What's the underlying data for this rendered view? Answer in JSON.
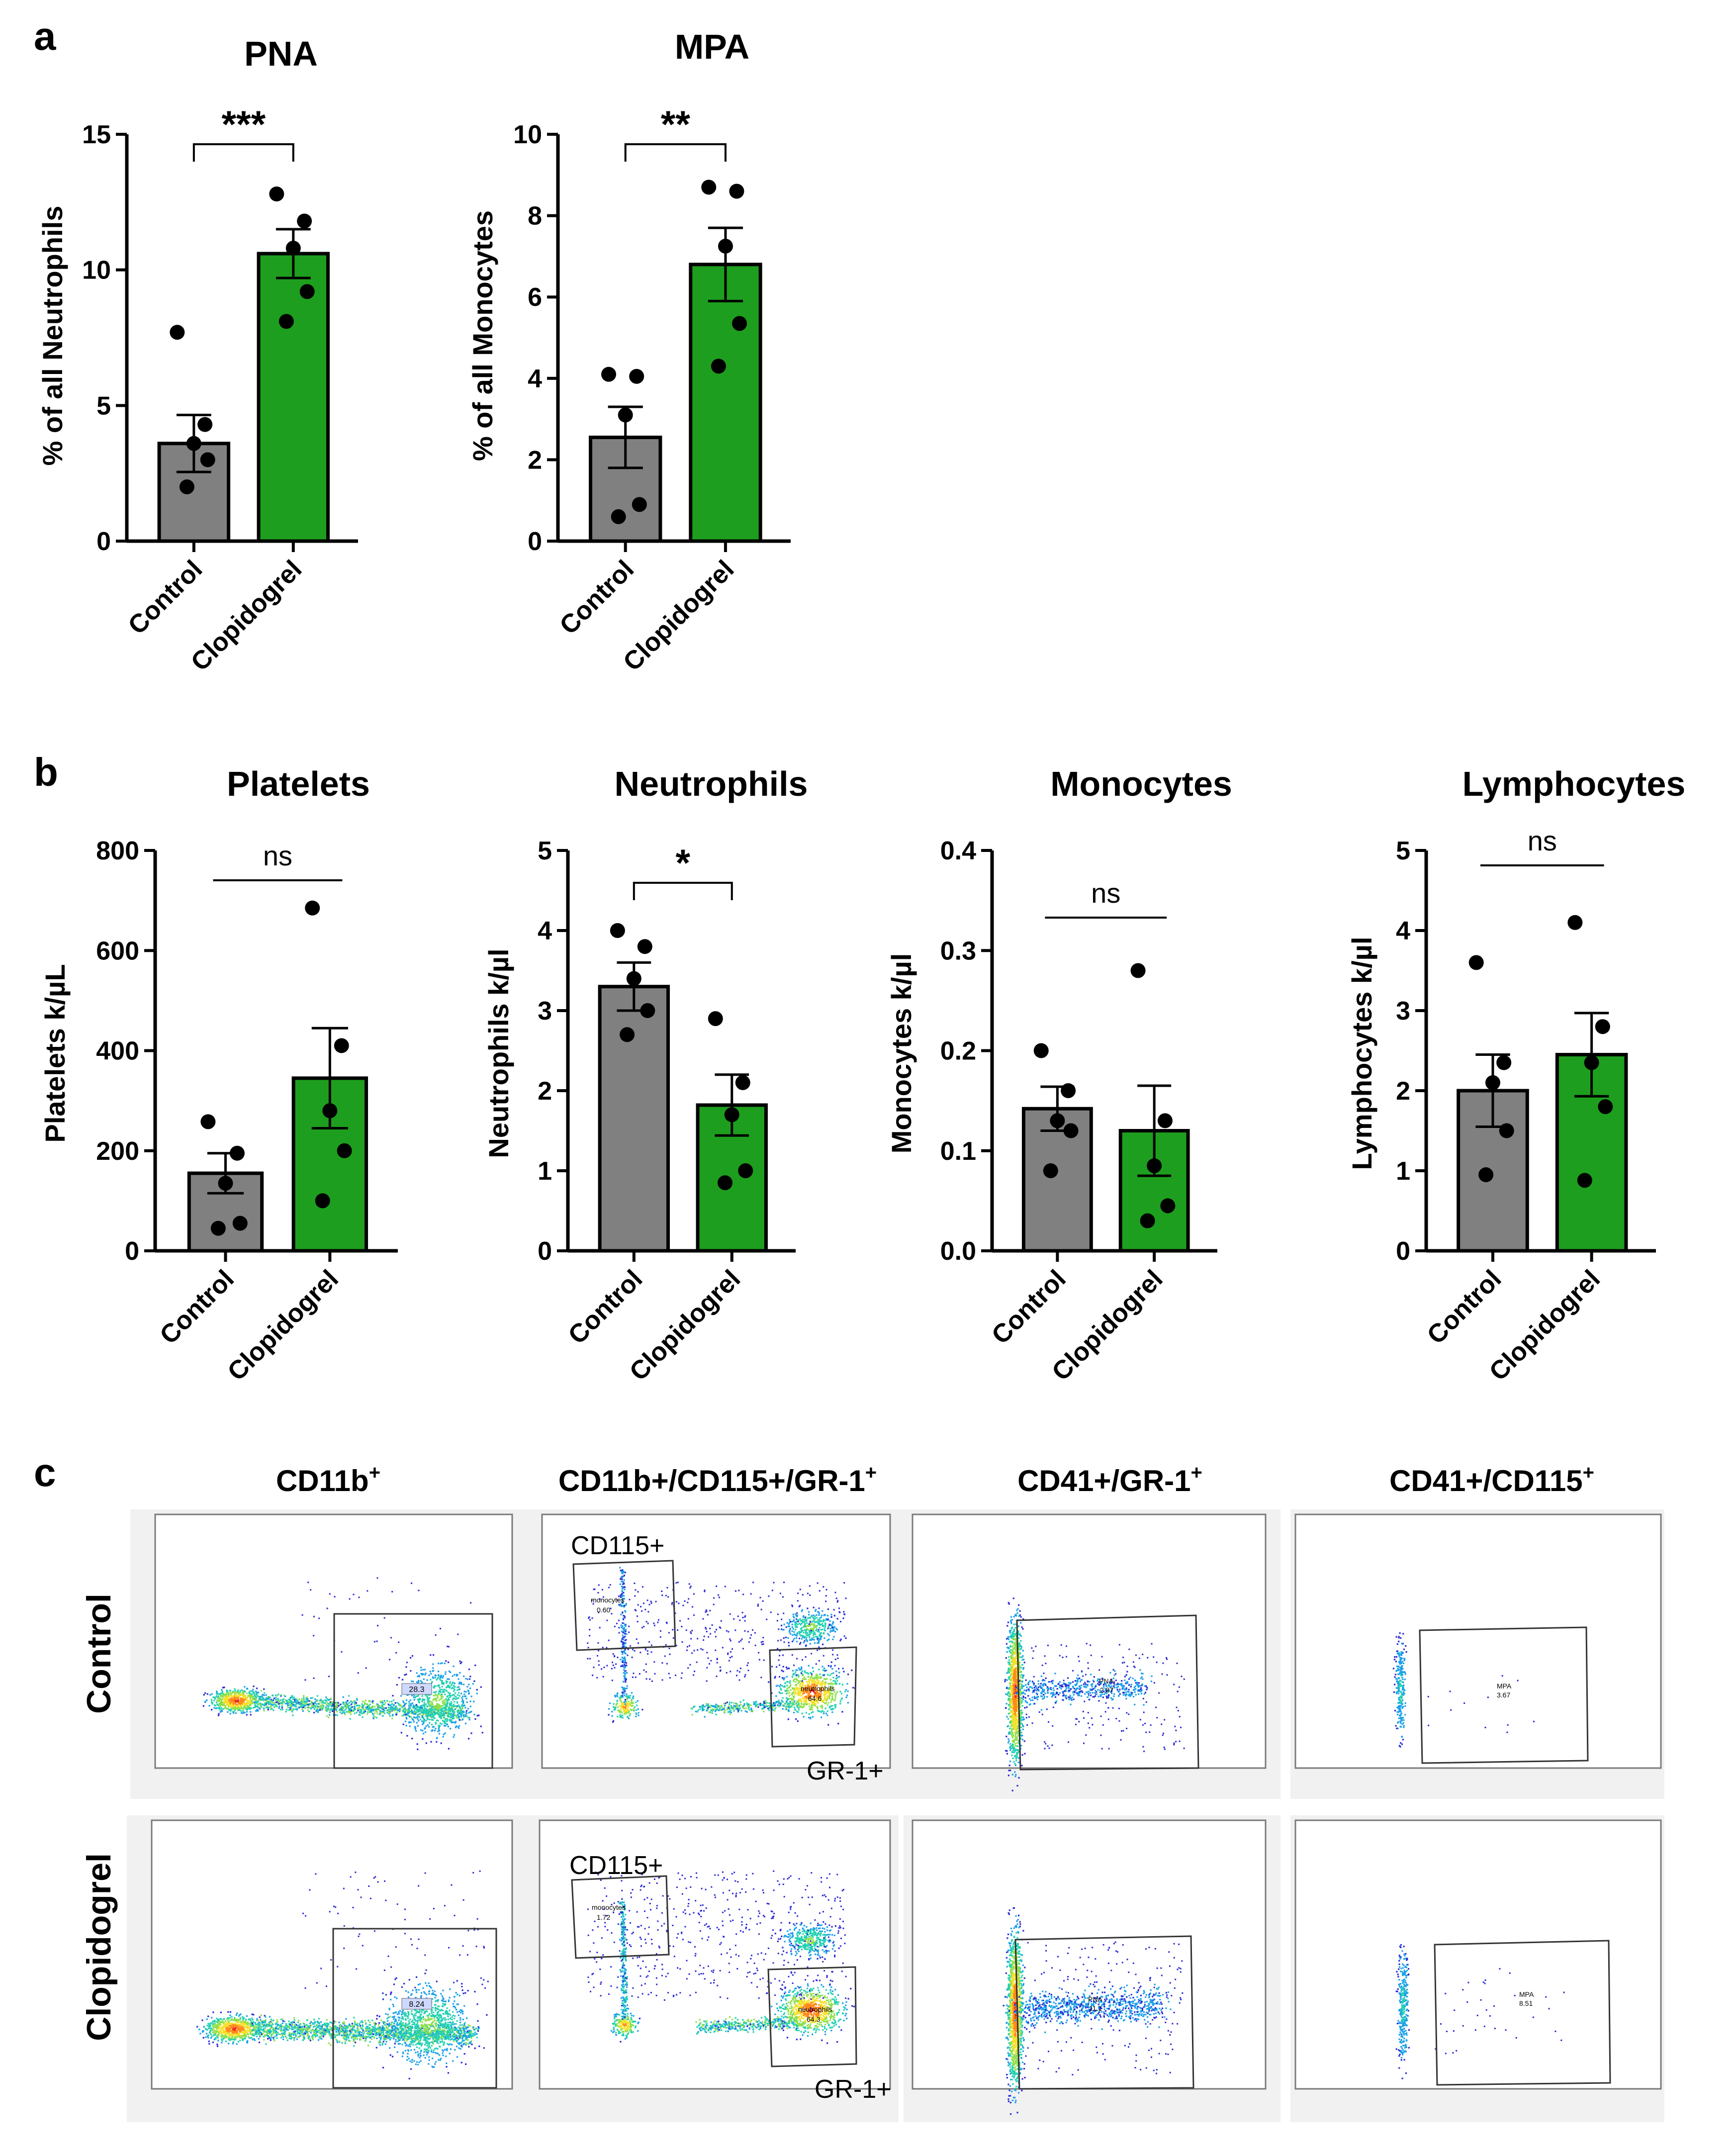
{
  "chart_data": [
    {
      "panel": "a",
      "type": "bar",
      "title": "PNA",
      "ylabel": "% of all Neutrophils",
      "xlabel": "",
      "ylim": [
        0,
        15
      ],
      "yticks": [
        0,
        5,
        10,
        15
      ],
      "categories": [
        "Control",
        "Clopidogrel"
      ],
      "values": [
        3.6,
        10.6
      ],
      "sem": [
        1.05,
        0.9
      ],
      "points": [
        [
          7.7,
          4.3,
          3.6,
          3.0,
          2.0
        ],
        [
          12.8,
          11.8,
          10.8,
          9.2,
          8.1
        ]
      ],
      "significance": "***",
      "bar_colors": [
        "#808080",
        "#1e9e1e"
      ]
    },
    {
      "panel": "a",
      "type": "bar",
      "title": "MPA",
      "ylabel": "% of all Monocytes",
      "xlabel": "",
      "ylim": [
        0,
        10
      ],
      "yticks": [
        0,
        2,
        4,
        6,
        8,
        10
      ],
      "categories": [
        "Control",
        "Clopidogrel"
      ],
      "values": [
        2.55,
        6.8
      ],
      "sem": [
        0.75,
        0.9
      ],
      "points": [
        [
          4.1,
          4.05,
          3.1,
          0.9,
          0.6
        ],
        [
          8.7,
          8.6,
          7.25,
          5.35,
          4.3
        ]
      ],
      "significance": "**",
      "bar_colors": [
        "#808080",
        "#1e9e1e"
      ]
    },
    {
      "panel": "b",
      "type": "bar",
      "title": "Platelets",
      "ylabel": "Platelets k/µL",
      "xlabel": "",
      "ylim": [
        0,
        800
      ],
      "yticks": [
        0,
        200,
        400,
        600,
        800
      ],
      "categories": [
        "Control",
        "Clopidogrel"
      ],
      "values": [
        155,
        345
      ],
      "sem": [
        40,
        100
      ],
      "points": [
        [
          258,
          195,
          135,
          55,
          45
        ],
        [
          685,
          410,
          280,
          200,
          100
        ]
      ],
      "significance": "ns",
      "bar_colors": [
        "#808080",
        "#1e9e1e"
      ]
    },
    {
      "panel": "b",
      "type": "bar",
      "title": "Neutrophils",
      "ylabel": "Neutrophils k/µl",
      "xlabel": "",
      "ylim": [
        0,
        5
      ],
      "yticks": [
        0,
        1,
        2,
        3,
        4,
        5
      ],
      "categories": [
        "Control",
        "Clopidogrel"
      ],
      "values": [
        3.3,
        1.82
      ],
      "sem": [
        0.3,
        0.38
      ],
      "points": [
        [
          4.0,
          3.8,
          3.4,
          3.0,
          2.7
        ],
        [
          2.9,
          2.1,
          1.7,
          1.0,
          0.85
        ]
      ],
      "significance": "*",
      "bar_colors": [
        "#808080",
        "#1e9e1e"
      ]
    },
    {
      "panel": "b",
      "type": "bar",
      "title": "Monocytes",
      "ylabel": "Monocytes k/µl",
      "xlabel": "",
      "ylim": [
        0,
        0.4
      ],
      "yticks": [
        "0.0",
        "0.1",
        "0.2",
        "0.3",
        "0.4"
      ],
      "categories": [
        "Control",
        "Clopidogrel"
      ],
      "values": [
        0.142,
        0.12
      ],
      "sem": [
        0.022,
        0.045
      ],
      "points": [
        [
          0.2,
          0.16,
          0.13,
          0.12,
          0.08
        ],
        [
          0.28,
          0.13,
          0.085,
          0.045,
          0.03
        ]
      ],
      "significance": "ns",
      "bar_colors": [
        "#808080",
        "#1e9e1e"
      ]
    },
    {
      "panel": "b",
      "type": "bar",
      "title": "Lymphocytes",
      "ylabel": "Lymphocytes k/µl",
      "xlabel": "",
      "ylim": [
        0,
        5
      ],
      "yticks": [
        0,
        1,
        2,
        3,
        4,
        5
      ],
      "categories": [
        "Control",
        "Clopidogrel"
      ],
      "values": [
        2.0,
        2.45
      ],
      "sem": [
        0.45,
        0.52
      ],
      "points": [
        [
          3.6,
          2.35,
          2.1,
          1.5,
          0.95
        ],
        [
          4.1,
          2.8,
          2.35,
          1.8,
          0.88
        ]
      ],
      "significance": "ns",
      "bar_colors": [
        "#808080",
        "#1e9e1e"
      ]
    }
  ],
  "panel_labels": [
    "a",
    "b",
    "c"
  ],
  "flow": {
    "column_titles": [
      {
        "base": "CD11b",
        "sup": "+"
      },
      {
        "base": "CD11b+/CD115+/GR-1",
        "sup": "+"
      },
      {
        "base": "CD41+/GR-1",
        "sup": "+"
      },
      {
        "base": "CD41+/CD115",
        "sup": "+"
      }
    ],
    "row_labels": [
      "Control",
      "Clopidogrel"
    ],
    "gate_labels": {
      "cd115": "CD115+",
      "gr1": "GR-1+"
    },
    "gate_values": {
      "control": {
        "cd11b": "28.3",
        "monocytes": "0.60",
        "neutrophils": "64.6",
        "pna": "2.87",
        "mpa": "3.67"
      },
      "clopidogrel": {
        "cd11b": "8.24",
        "monocytes": "1.72",
        "neutrophils": "64.3",
        "pna": "11.1",
        "mpa": "8.51"
      }
    },
    "gate_names": {
      "monocytes": "monocytes",
      "neutrophils": "neutrophils",
      "pna": "PNA",
      "mpa": "MPA"
    },
    "dot_colors": [
      "#2b2bd6",
      "#1aa0e8",
      "#22d1b0",
      "#8fe04a",
      "#f5e028",
      "#ff8a1a",
      "#e8201a"
    ]
  }
}
